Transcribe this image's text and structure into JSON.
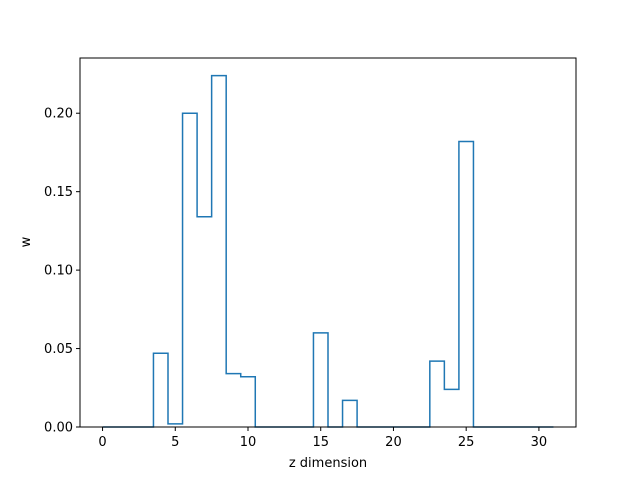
{
  "chart_data": {
    "type": "line",
    "style": "step-mid",
    "title": "",
    "xlabel": "z dimension",
    "ylabel": "w",
    "xlim": [
      -1.55,
      32.55
    ],
    "ylim": [
      0,
      0.2352
    ],
    "x_ticks": [
      0,
      5,
      10,
      15,
      20,
      25,
      30
    ],
    "x_tick_labels": [
      "0",
      "5",
      "10",
      "15",
      "20",
      "25",
      "30"
    ],
    "y_ticks": [
      0,
      0.05,
      0.1,
      0.15,
      0.2
    ],
    "y_tick_labels": [
      "0.00",
      "0.05",
      "0.10",
      "0.15",
      "0.20"
    ],
    "grid": false,
    "legend": "none",
    "series": [
      {
        "color": "#1f77b4",
        "x": [
          0,
          1,
          2,
          3,
          4,
          5,
          6,
          7,
          8,
          9,
          10,
          11,
          12,
          13,
          14,
          15,
          16,
          17,
          18,
          19,
          20,
          21,
          22,
          23,
          24,
          25,
          26,
          27,
          28,
          29,
          30,
          31
        ],
        "values": [
          0,
          0,
          0,
          0,
          0.047,
          0.002,
          0.2,
          0.134,
          0.224,
          0.034,
          0.032,
          0,
          0,
          0,
          0,
          0.06,
          0,
          0.017,
          0,
          0,
          0,
          0,
          0,
          0.042,
          0.024,
          0.182,
          0,
          0,
          0,
          0,
          0,
          0
        ]
      }
    ]
  }
}
